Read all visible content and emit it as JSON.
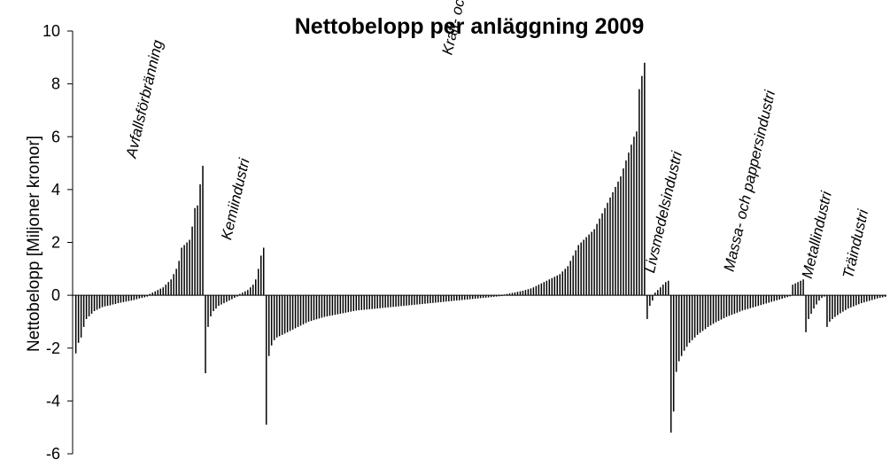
{
  "chart_data": {
    "type": "bar",
    "title": "Nettobelopp per anläggning 2009",
    "ylabel": "Nettobelopp [Miljoner kronor]",
    "xlabel": "",
    "ylim": [
      -6,
      10
    ],
    "yticks": [
      10,
      8,
      6,
      4,
      2,
      0,
      -2,
      -4,
      -6
    ],
    "grid": false,
    "legend": "none",
    "bar_color": "#000000",
    "groups": [
      {
        "name": "Avfallsförbränning",
        "values": [
          -2.2,
          -1.8,
          -1.6,
          -1.2,
          -0.9,
          -0.8,
          -0.7,
          -0.6,
          -0.55,
          -0.5,
          -0.45,
          -0.42,
          -0.4,
          -0.38,
          -0.35,
          -0.33,
          -0.3,
          -0.28,
          -0.26,
          -0.24,
          -0.22,
          -0.2,
          -0.18,
          -0.15,
          -0.12,
          -0.1,
          -0.08,
          -0.05,
          0.05,
          0.1,
          0.15,
          0.2,
          0.25,
          0.3,
          0.4,
          0.5,
          0.6,
          0.8,
          1.0,
          1.3,
          1.8,
          1.9,
          2.0,
          2.1,
          2.6,
          3.3,
          3.4,
          4.2,
          4.9
        ]
      },
      {
        "name": "Kemiindustri",
        "values": [
          -2.95,
          -1.2,
          -0.8,
          -0.6,
          -0.5,
          -0.4,
          -0.35,
          -0.3,
          -0.25,
          -0.2,
          -0.15,
          -0.1,
          -0.05,
          0.05,
          0.1,
          0.15,
          0.2,
          0.3,
          0.4,
          0.6,
          1.0,
          1.5,
          1.8
        ]
      },
      {
        "name": "Kraft- och värmeverk",
        "values": [
          -4.9,
          -2.3,
          -1.9,
          -1.7,
          -1.6,
          -1.55,
          -1.5,
          -1.45,
          -1.4,
          -1.35,
          -1.3,
          -1.25,
          -1.2,
          -1.15,
          -1.1,
          -1.05,
          -1.0,
          -0.97,
          -0.94,
          -0.91,
          -0.88,
          -0.85,
          -0.82,
          -0.8,
          -0.78,
          -0.76,
          -0.74,
          -0.72,
          -0.7,
          -0.68,
          -0.66,
          -0.64,
          -0.62,
          -0.6,
          -0.58,
          -0.57,
          -0.56,
          -0.55,
          -0.54,
          -0.53,
          -0.52,
          -0.51,
          -0.5,
          -0.49,
          -0.48,
          -0.47,
          -0.46,
          -0.45,
          -0.44,
          -0.43,
          -0.42,
          -0.41,
          -0.4,
          -0.39,
          -0.38,
          -0.37,
          -0.36,
          -0.35,
          -0.34,
          -0.33,
          -0.32,
          -0.31,
          -0.3,
          -0.29,
          -0.28,
          -0.27,
          -0.26,
          -0.25,
          -0.24,
          -0.23,
          -0.22,
          -0.21,
          -0.2,
          -0.19,
          -0.18,
          -0.17,
          -0.16,
          -0.15,
          -0.14,
          -0.13,
          -0.12,
          -0.11,
          -0.1,
          -0.09,
          -0.08,
          -0.07,
          -0.06,
          -0.05,
          -0.04,
          -0.03,
          0.03,
          0.05,
          0.07,
          0.09,
          0.11,
          0.13,
          0.15,
          0.17,
          0.2,
          0.23,
          0.26,
          0.3,
          0.35,
          0.4,
          0.45,
          0.5,
          0.55,
          0.6,
          0.65,
          0.7,
          0.75,
          0.8,
          0.9,
          1.0,
          1.1,
          1.3,
          1.5,
          1.7,
          1.9,
          2.0,
          2.1,
          2.2,
          2.3,
          2.4,
          2.5,
          2.7,
          2.9,
          3.1,
          3.3,
          3.5,
          3.7,
          3.9,
          4.1,
          4.3,
          4.5,
          4.8,
          5.1,
          5.4,
          5.7,
          6.0,
          6.2,
          7.8,
          8.3,
          8.8
        ]
      },
      {
        "name": "Livsmedelsindustri",
        "values": [
          -0.9,
          -0.4,
          -0.2,
          0.1,
          0.2,
          0.3,
          0.4,
          0.5,
          0.55
        ]
      },
      {
        "name": "Massa- och pappersindustri",
        "values": [
          -5.2,
          -4.4,
          -2.9,
          -2.5,
          -2.3,
          -2.1,
          -1.95,
          -1.8,
          -1.7,
          -1.6,
          -1.5,
          -1.42,
          -1.35,
          -1.28,
          -1.2,
          -1.14,
          -1.08,
          -1.02,
          -0.97,
          -0.92,
          -0.87,
          -0.82,
          -0.78,
          -0.74,
          -0.7,
          -0.66,
          -0.62,
          -0.58,
          -0.55,
          -0.52,
          -0.49,
          -0.46,
          -0.43,
          -0.4,
          -0.37,
          -0.34,
          -0.31,
          -0.28,
          -0.25,
          -0.22,
          -0.19,
          -0.16,
          -0.13,
          -0.1,
          -0.07,
          -0.04,
          0.4,
          0.45,
          0.5,
          0.55,
          0.6
        ]
      },
      {
        "name": "Metallindustri",
        "values": [
          -1.4,
          -0.9,
          -0.7,
          -0.5,
          -0.35,
          -0.2,
          -0.1,
          -0.05
        ]
      },
      {
        "name": "Träindustri",
        "values": [
          -1.2,
          -1.0,
          -0.9,
          -0.82,
          -0.75,
          -0.68,
          -0.62,
          -0.56,
          -0.5,
          -0.46,
          -0.42,
          -0.38,
          -0.34,
          -0.3,
          -0.27,
          -0.24,
          -0.21,
          -0.18,
          -0.15,
          -0.12,
          -0.1,
          -0.08,
          -0.06
        ]
      }
    ]
  }
}
